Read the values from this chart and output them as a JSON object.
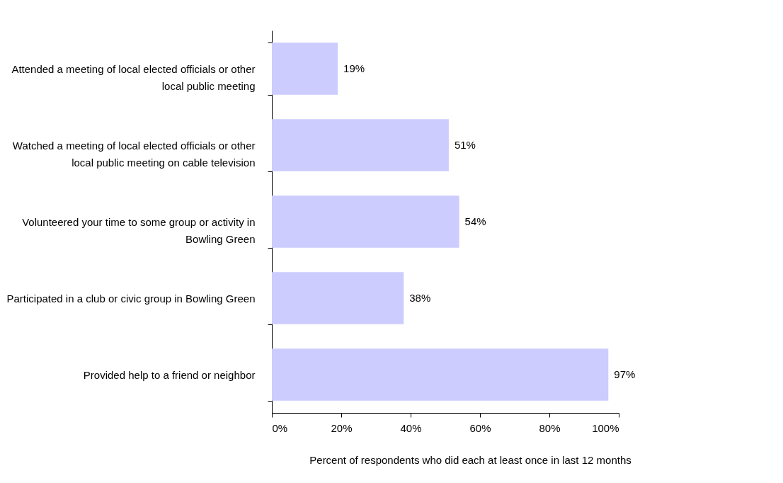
{
  "chart_data": {
    "type": "bar",
    "orientation": "horizontal",
    "xlabel": "Percent of respondents who did each at least once in last 12 months",
    "categories": [
      "Attended a meeting of local elected officials or other local public meeting",
      "Watched a meeting of local elected officials or other local public meeting on cable television",
      "Volunteered your time to some group or activity in Bowling Green",
      "Participated in a club or civic group in Bowling Green",
      "Provided help to a friend or neighbor"
    ],
    "values": [
      19,
      51,
      54,
      38,
      97
    ],
    "value_labels": [
      "19%",
      "51%",
      "54%",
      "38%",
      "97%"
    ],
    "color": "#ccccff",
    "xlim": [
      0,
      100
    ],
    "xticks": [
      {
        "value": 0,
        "label": "0%"
      },
      {
        "value": 20,
        "label": "20%"
      },
      {
        "value": 40,
        "label": "40%"
      },
      {
        "value": 60,
        "label": "60%"
      },
      {
        "value": 80,
        "label": "80%"
      },
      {
        "value": 100,
        "label": "100%"
      }
    ],
    "grid": false
  }
}
